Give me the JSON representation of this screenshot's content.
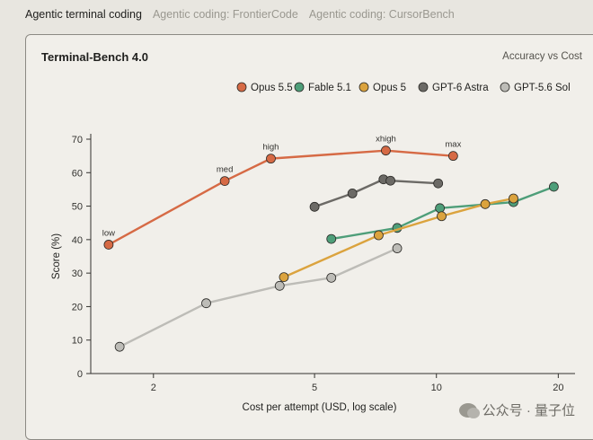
{
  "tabs": [
    {
      "label": "Agentic terminal coding",
      "active": true
    },
    {
      "label": "Agentic coding: FrontierCode",
      "active": false
    },
    {
      "label": "Agentic coding: CursorBench",
      "active": false
    }
  ],
  "watermark": "公众号 · 量子位",
  "chart_data": {
    "type": "scatter",
    "title": "Terminal-Bench 4.0",
    "subtitle": "Accuracy vs Cost",
    "xlabel": "Cost per attempt (USD, log scale)",
    "ylabel": "Score (%)",
    "xscale": "log",
    "xlim": [
      1.4,
      22
    ],
    "ylim": [
      0,
      70
    ],
    "xticks": [
      2,
      5,
      10,
      20
    ],
    "yticks": [
      0,
      10,
      20,
      30,
      40,
      50,
      60,
      70
    ],
    "grid": false,
    "legend_position": "top-right",
    "series": [
      {
        "name": "Opus 5.5",
        "color": "#d66a45",
        "x": [
          1.55,
          3.0,
          3.9,
          7.5,
          11.0
        ],
        "y": [
          38.5,
          57.5,
          64.2,
          66.6,
          65.0
        ],
        "labels": [
          "low",
          "med",
          "high",
          "xhigh",
          "max"
        ]
      },
      {
        "name": "Fable 5.1",
        "color": "#4e9e79",
        "x": [
          5.5,
          8.0,
          10.2,
          15.5,
          19.5
        ],
        "y": [
          40.2,
          43.5,
          49.4,
          51.2,
          55.8
        ]
      },
      {
        "name": "Opus 5",
        "color": "#dba33e",
        "x": [
          4.2,
          7.2,
          10.3,
          13.2,
          15.5
        ],
        "y": [
          28.8,
          41.3,
          47.0,
          50.6,
          52.3
        ]
      },
      {
        "name": "GPT-6 Astra",
        "color": "#6c6a66",
        "x": [
          5.0,
          6.2,
          7.4,
          7.7,
          10.1
        ],
        "y": [
          49.8,
          53.8,
          58.0,
          57.6,
          56.8
        ]
      },
      {
        "name": "GPT-5.6 Sol",
        "color": "#bdbcb7",
        "x": [
          1.65,
          2.7,
          4.1,
          5.5,
          8.0
        ],
        "y": [
          8.0,
          21.0,
          26.2,
          28.6,
          37.4
        ]
      }
    ]
  }
}
